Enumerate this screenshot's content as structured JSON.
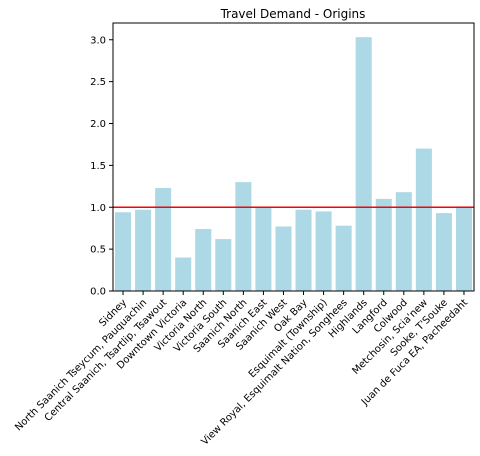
{
  "chart_data": {
    "type": "bar",
    "title": "Travel Demand - Origins",
    "xlabel": "",
    "ylabel": "",
    "ylim": [
      0,
      3.2
    ],
    "yticks": [
      0.0,
      0.5,
      1.0,
      1.5,
      2.0,
      2.5,
      3.0
    ],
    "ytick_labels": [
      "0.0",
      "0.5",
      "1.0",
      "1.5",
      "2.0",
      "2.5",
      "3.0"
    ],
    "categories": [
      "Sidney",
      "North Saanich Tseycum, Pauquachin",
      "Central Saanich, Tsartlip, Tsawout",
      "Downtown Victoria",
      "Victoria North",
      "Victoria South",
      "Saanich North",
      "Saanich East",
      "Saanich West",
      "Oak Bay",
      "Esquimalt (Township)",
      "View Royal, Esquimalt Nation, Songhees",
      "Highlands",
      "Langford",
      "Colwood",
      "Metchosin, Scia'new",
      "Sooke, T'Souke",
      "Juan de Fuca EA, Pacheedaht"
    ],
    "values": [
      0.94,
      0.97,
      1.23,
      0.4,
      0.74,
      0.62,
      1.3,
      1.0,
      0.77,
      0.97,
      0.95,
      0.78,
      3.03,
      1.1,
      1.18,
      1.7,
      0.93,
      1.01
    ],
    "reference_line": 1.0,
    "bar_color": "#add8e6",
    "line_color": "#ff0000",
    "grid": false
  }
}
